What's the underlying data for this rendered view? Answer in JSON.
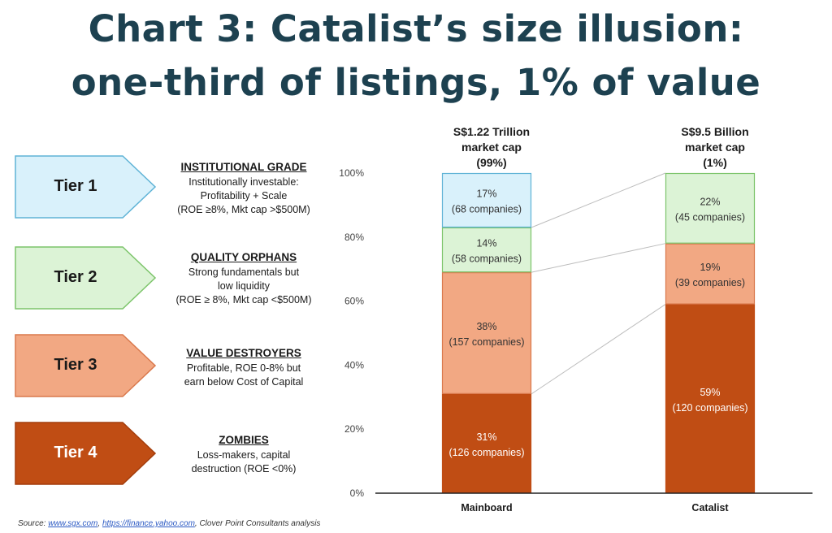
{
  "title": {
    "line1": "Chart 3: Catalist’s size illusion:",
    "line2": "one-third of listings, 1% of value"
  },
  "tiers": [
    {
      "label": "Tier 1",
      "heading": "INSTITUTIONAL GRADE",
      "lines": [
        "Institutionally investable:",
        "Profitability + Scale",
        "(ROE ≥8%, Mkt cap >$500M)"
      ],
      "fill": "#d9f1fb",
      "stroke": "#5fb3d6",
      "text_color": "#1a1a1a"
    },
    {
      "label": "Tier 2",
      "heading": "QUALITY ORPHANS",
      "lines": [
        "Strong fundamentals but",
        "low liquidity",
        "(ROE ≥ 8%, Mkt cap <$500M)"
      ],
      "fill": "#dcf3d6",
      "stroke": "#7cc46a",
      "text_color": "#1a1a1a"
    },
    {
      "label": "Tier 3",
      "heading": "VALUE DESTROYERS",
      "lines": [
        "Profitable, ROE 0-8% but",
        "earn below Cost of Capital"
      ],
      "fill": "#f2a883",
      "stroke": "#d9784c",
      "text_color": "#1a1a1a"
    },
    {
      "label": "Tier 4",
      "heading": "ZOMBIES",
      "lines": [
        "Loss-makers, capital",
        "destruction (ROE <0%)"
      ],
      "fill": "#c04d14",
      "stroke": "#a33d0c",
      "text_color": "#ffffff"
    }
  ],
  "chart_data": {
    "type": "bar",
    "stacked": true,
    "categories": [
      "Mainboard",
      "Catalist"
    ],
    "category_headers": [
      [
        "S$1.22 Trillion",
        "market cap",
        "(99%)"
      ],
      [
        "S$9.5 Billion",
        "market cap",
        "(1%)"
      ]
    ],
    "series": [
      {
        "values": [
          31,
          59
        ],
        "data_labels": [
          [
            "31%",
            "(126 companies)"
          ],
          [
            "59%",
            "(120 companies)"
          ]
        ],
        "color": "#c04d14",
        "stroke": "#c04d14",
        "label_color": "#ffffff"
      },
      {
        "values": [
          38,
          19
        ],
        "data_labels": [
          [
            "38%",
            "(157 companies)"
          ],
          [
            "19%",
            "(39 companies)"
          ]
        ],
        "color": "#f2a883",
        "stroke": "#d9784c",
        "label_color": "#333333"
      },
      {
        "values": [
          14,
          22
        ],
        "data_labels": [
          [
            "14%",
            "(58 companies)"
          ],
          [
            "22%",
            "(45 companies)"
          ]
        ],
        "color": "#dcf3d6",
        "stroke": "#7cc46a",
        "label_color": "#333333"
      },
      {
        "values": [
          17,
          0
        ],
        "data_labels": [
          [
            "17%",
            "(68 companies)"
          ],
          null
        ],
        "color": "#d9f1fb",
        "stroke": "#5fb3d6",
        "label_color": "#333333"
      }
    ],
    "y_ticks": [
      "0%",
      "20%",
      "40%",
      "60%",
      "80%",
      "100%"
    ],
    "ylim": [
      0,
      100
    ],
    "connector_color": "#bdbdbd"
  },
  "source": {
    "prefix": "Source: ",
    "link1": "www.sgx.com",
    "sep": ", ",
    "link2": "https://finance.yahoo.com",
    "suffix": ", Clover Point Consultants analysis"
  }
}
